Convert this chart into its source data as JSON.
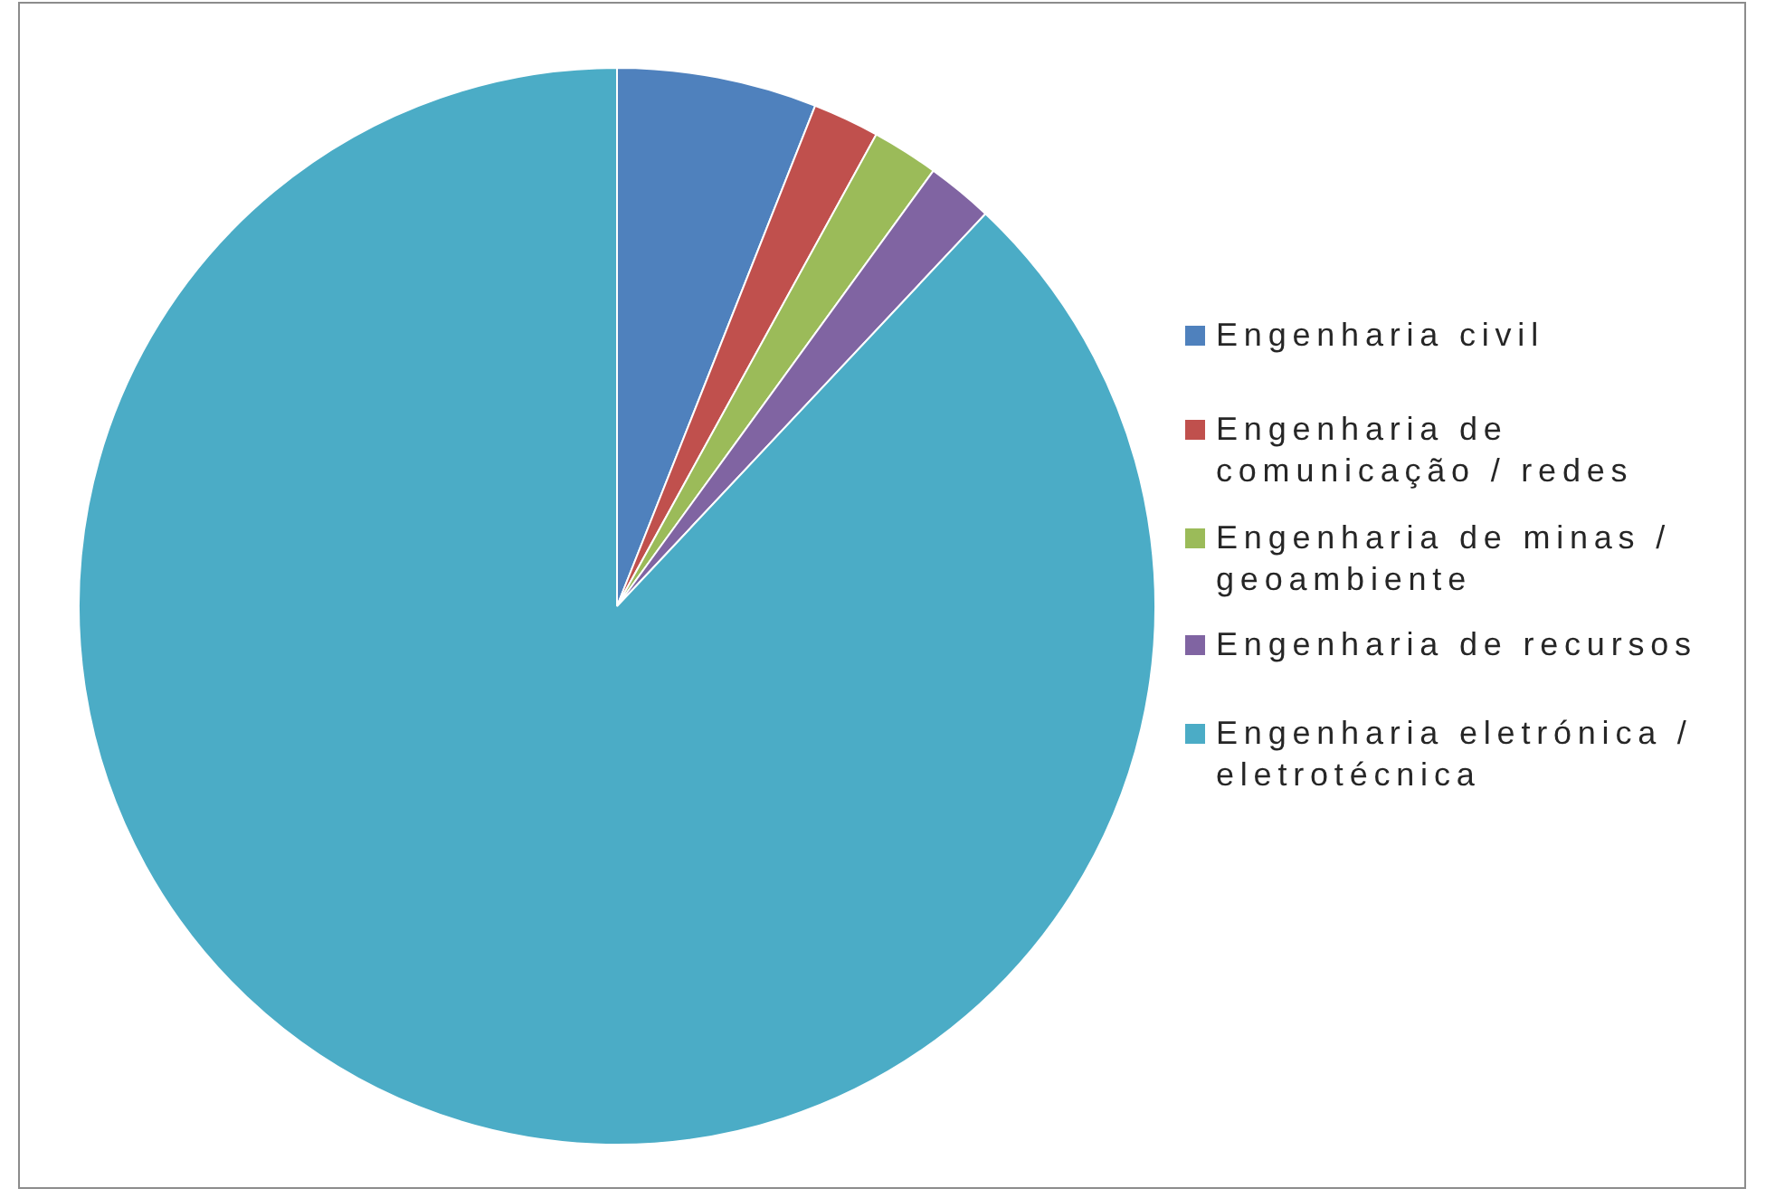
{
  "chart_data": {
    "type": "pie",
    "categories": [
      "Engenharia civil",
      "Engenharia de comunicação / redes",
      "Engenharia de minas / geoambiente",
      "Engenharia de recursos",
      "Engenharia eletrónica / eletrotécnica"
    ],
    "values": [
      6,
      2,
      2,
      2,
      88
    ],
    "colors": [
      "#4f81bd",
      "#c0504d",
      "#9bbb59",
      "#8064a2",
      "#4bacc6"
    ],
    "legend": "right"
  }
}
